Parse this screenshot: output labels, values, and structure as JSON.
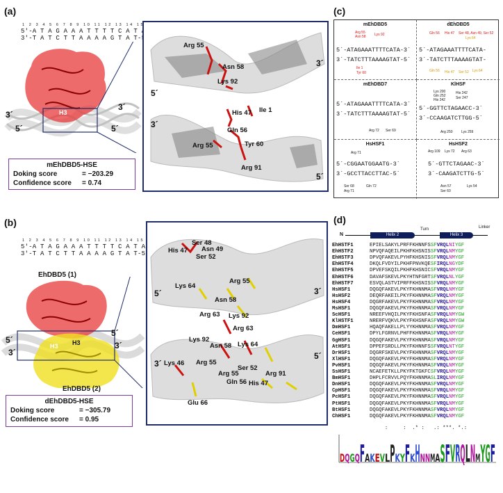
{
  "panel_a": {
    "label": "(a)",
    "numbers": "1 2 3 4 5 6 7 8 9 10 11 12 13 14 15 16",
    "seq_top": "5'-A T A G A A A T T T T C A T A-3'",
    "seq_bot": "3'-T A T C T T A A A A G T A T-5'",
    "helix_label": "H3",
    "complex_name": "mEhDBD5-HSE",
    "docking_label": "Doking score",
    "docking_value": "= −203.29",
    "confidence_label": "Confidence score",
    "confidence_value": "= 0.74",
    "end_5a": "5´",
    "end_3a": "3´",
    "end_3b": "3´",
    "end_5b": "5´",
    "zoom_residues_top": [
      "Arg 55",
      "Asn 58",
      "Lys 92"
    ],
    "zoom_residues_bottom": [
      "His 47",
      "Ile 1",
      "Gln 56",
      "Arg 55",
      "Tyr 60",
      "Arg 91"
    ],
    "zoom_ends": [
      "5´",
      "3´",
      "3´",
      "5´"
    ]
  },
  "panel_b": {
    "label": "(b)",
    "numbers": "1 2 3 4 5 6 7 8 9 10 11 12 13 14 15 16",
    "seq_top": "5'-A T A G A A A T T T T C A T A-3'",
    "seq_bot": "3'-T A T C T T A A A A G T A T-5'",
    "chain1": "EhDBD5 (1)",
    "chain2": "EhDBD5 (2)",
    "helix1": "H3",
    "helix2": "H3",
    "complex_name": "dEhDBD5-HSE",
    "docking_label": "Doking score",
    "docking_value": "= −305.79",
    "confidence_label": "Confidence score",
    "confidence_value": "= 0.95",
    "end_5a": "5´",
    "end_3a": "3´",
    "end_5b": "5´",
    "end_3b": "3´",
    "zoom_residues_top": [
      "His 47",
      "Ser 48",
      "Asn 49",
      "Ser 52",
      "Lys 64",
      "Arg 55",
      "Asn 58",
      "Arg 63",
      "Lys 92"
    ],
    "zoom_residues_bottom": [
      "Arg 63",
      "Lys 92",
      "Asn 58",
      "Lys 64",
      "Lys 46",
      "Arg 55",
      "Ser 52",
      "Arg 55",
      "Gln 56",
      "His 47",
      "Arg 91",
      "Glu 66"
    ],
    "zoom_ends": [
      "5´",
      "3´",
      "3´",
      "5´"
    ]
  },
  "panel_c": {
    "label": "(c)",
    "cells": [
      {
        "title": "mEhDBD5",
        "seq1": "5´-ATAGAAATTTTCATA-3´",
        "seq2": "3´-TATCTTTAAAAGTAT-5´",
        "ann_top": [
          "Arg 55",
          "Asn 58",
          "Lys 92"
        ],
        "ann_bot": [
          "Ile 1",
          "Tyr 60"
        ]
      },
      {
        "title": "dEhDBD5",
        "seq1": "5´-ATAGAAATTTTCATA-",
        "seq2": "3´-TATCTTTAAAAGTAT-",
        "ann_top": [
          "Gln 56",
          "His 47",
          "Ser 48, Asn 49, Ser 52",
          "Lys 64"
        ],
        "ann_bot": [
          "Gln 56",
          "His 47",
          "Ser 52",
          "Lys 64"
        ]
      },
      {
        "title": "mEhDBD7",
        "seq1": "5´-ATAGAAATTTTCATA-3´",
        "seq2": "3´-TATCTTTAAAAGTAT-5´",
        "ann_top": [],
        "ann_bot": [
          "Arg 72",
          "Ser 69"
        ]
      },
      {
        "title": "KlHSF",
        "seq1": "5´-GGTTCTAGAACC-3´",
        "seq2": "3´-CCAAGATCTTGG-5´",
        "ann_top": [
          "Lys 200",
          "Gln 252",
          "His 242",
          "His 242",
          "Ser 247"
        ],
        "ann_bot": [
          "Arg 250",
          "Lys 259"
        ]
      },
      {
        "title": "HsHSF1",
        "seq1": "5´-CGGAATGGAATG-3´",
        "seq2": "3´-GCCTTACCTTAC-5´",
        "ann_top": [
          "Arg 71"
        ],
        "ann_bot": [
          "Ser 68",
          "Arg 71",
          "Gln 72"
        ]
      },
      {
        "title": "HsHSF2",
        "seq1": "5´-GTTCTAGAAC-3´",
        "seq2": "3´-CAAGATCTTG-5´",
        "ann_top": [
          "Arg 109",
          "Lys 72",
          "Arg 63"
        ],
        "ann_bot": [
          "Asn 57",
          "Ser 60",
          "Lys 54"
        ]
      }
    ]
  },
  "panel_d": {
    "label": "(d)",
    "n_label": "N",
    "helix2": "Helix 2",
    "turn": "Turn",
    "helix3": "Helix 3",
    "linker": "Linker",
    "rows": [
      {
        "name": "EhHSTF1",
        "seq": "EPIELSAKYLPRFFKHNNFSSFVRQLNIYGF"
      },
      {
        "name": "EhHSTF2",
        "seq": "NPVQFAQEILPKHFKHSNISSFVRQLNMYGF"
      },
      {
        "name": "EhHSTF3",
        "seq": "DPVQFAKEVLPYHFKHSNISSFVRQLNMYGF"
      },
      {
        "name": "EhHSTF4",
        "seq": "DKQLFVDYILPKHFPNVKQESFIRQLNGYDF"
      },
      {
        "name": "EhHSTF5",
        "seq": "DPVEFSKQILPKHFKHSNICSFVRQLNMYGF"
      },
      {
        "name": "EhHSTF6",
        "seq": "DAVAFSKEVLPKYHTNFGRTSFVRQLNLYGF"
      },
      {
        "name": "EhHSTF7",
        "seq": "ESVQLASTVIPRFFKHSNISSFVRQLNMYGF"
      },
      {
        "name": "HsHSF1",
        "seq": "DQGQFAKEVLPKYFKHNNMASFVRQLNMYGF"
      },
      {
        "name": "HsHSF2",
        "seq": "DEQRFAKEILPKYFKHNNMASFVRQLNMYGF"
      },
      {
        "name": "HsHSF4",
        "seq": "DQGRFAKEVLPKYFKHNNMASFVRQLNMYGF"
      },
      {
        "name": "MsHSF1",
        "seq": "DQGQFAKEVLPKYFKHNNMASFVRQLNMYGF"
      },
      {
        "name": "ScHSF1",
        "seq": "NREEFVHQILPKYFKHSNFASFVRQLNMYGW"
      },
      {
        "name": "KlHSTF1",
        "seq": "NRERFVQKVLPKYFKHSNFASFVRQLNMYGW"
      },
      {
        "name": "DmHSF1",
        "seq": "HQAQFAKELLPLYYKHNNMASFVRQLNMYGF"
      },
      {
        "name": "CeHSF1",
        "seq": "DPYLFGRNVLPHFFKHNNMASFVRQLNMYGF"
      },
      {
        "name": "GgHSF1",
        "seq": "DQGQFAKEVLPKYFKHNNMASFVRQLNMYGF"
      },
      {
        "name": "AtHSF1",
        "seq": "DPPEFSRDLLPKYFKHNNFSSFVRQLNTYGF"
      },
      {
        "name": "DrHSF1",
        "seq": "DQGRFSKEVLPKYFKHNNMASFVRQLNMYGF"
      },
      {
        "name": "XlHSF1",
        "seq": "DQGQFAKEVLPKYFKHNNMASFVRQLNMYGF"
      },
      {
        "name": "PvHSF1",
        "seq": "DQGQFAKEVLPKYFKHNNMASFVRQLNMYGF"
      },
      {
        "name": "SsHSF1",
        "seq": "NCAEFETKLLPKYFKTGKFCSFVRQLNMYGF"
      },
      {
        "name": "BmHSF1",
        "seq": "DHPLFCRVVLPQYFKHNNMASLIRQLNMYGF"
      },
      {
        "name": "DnHSF1",
        "seq": "DQGQFAKEVLPKYFKHNNMASFVRQLNMYGF"
      },
      {
        "name": "CpHSF1",
        "seq": "DQGQFAKEVLPKYFKHNNMASFVRQLNMYGF"
      },
      {
        "name": "PcHSF1",
        "seq": "DQGQFAKEVLPKYFKHNNMASFVRQLNMYGF"
      },
      {
        "name": "PtHSF1",
        "seq": "DQGQFAKEVLPKYFKHNNMASFVRQLNMYGF"
      },
      {
        "name": "BtHSF1",
        "seq": "DQGQFAKEVLPKYFKHNNMASFVRQLNMYGF"
      },
      {
        "name": "ChHSF1",
        "seq": "DQGQFAKEVLPKYFKHNNMASFVRQLNMYGF"
      }
    ],
    "consensus": "     :     :  .* :   .: ***. *.:",
    "logo": "DQGQFAKEVLPKYFKHNNMASFVRQLNMYGF"
  }
}
